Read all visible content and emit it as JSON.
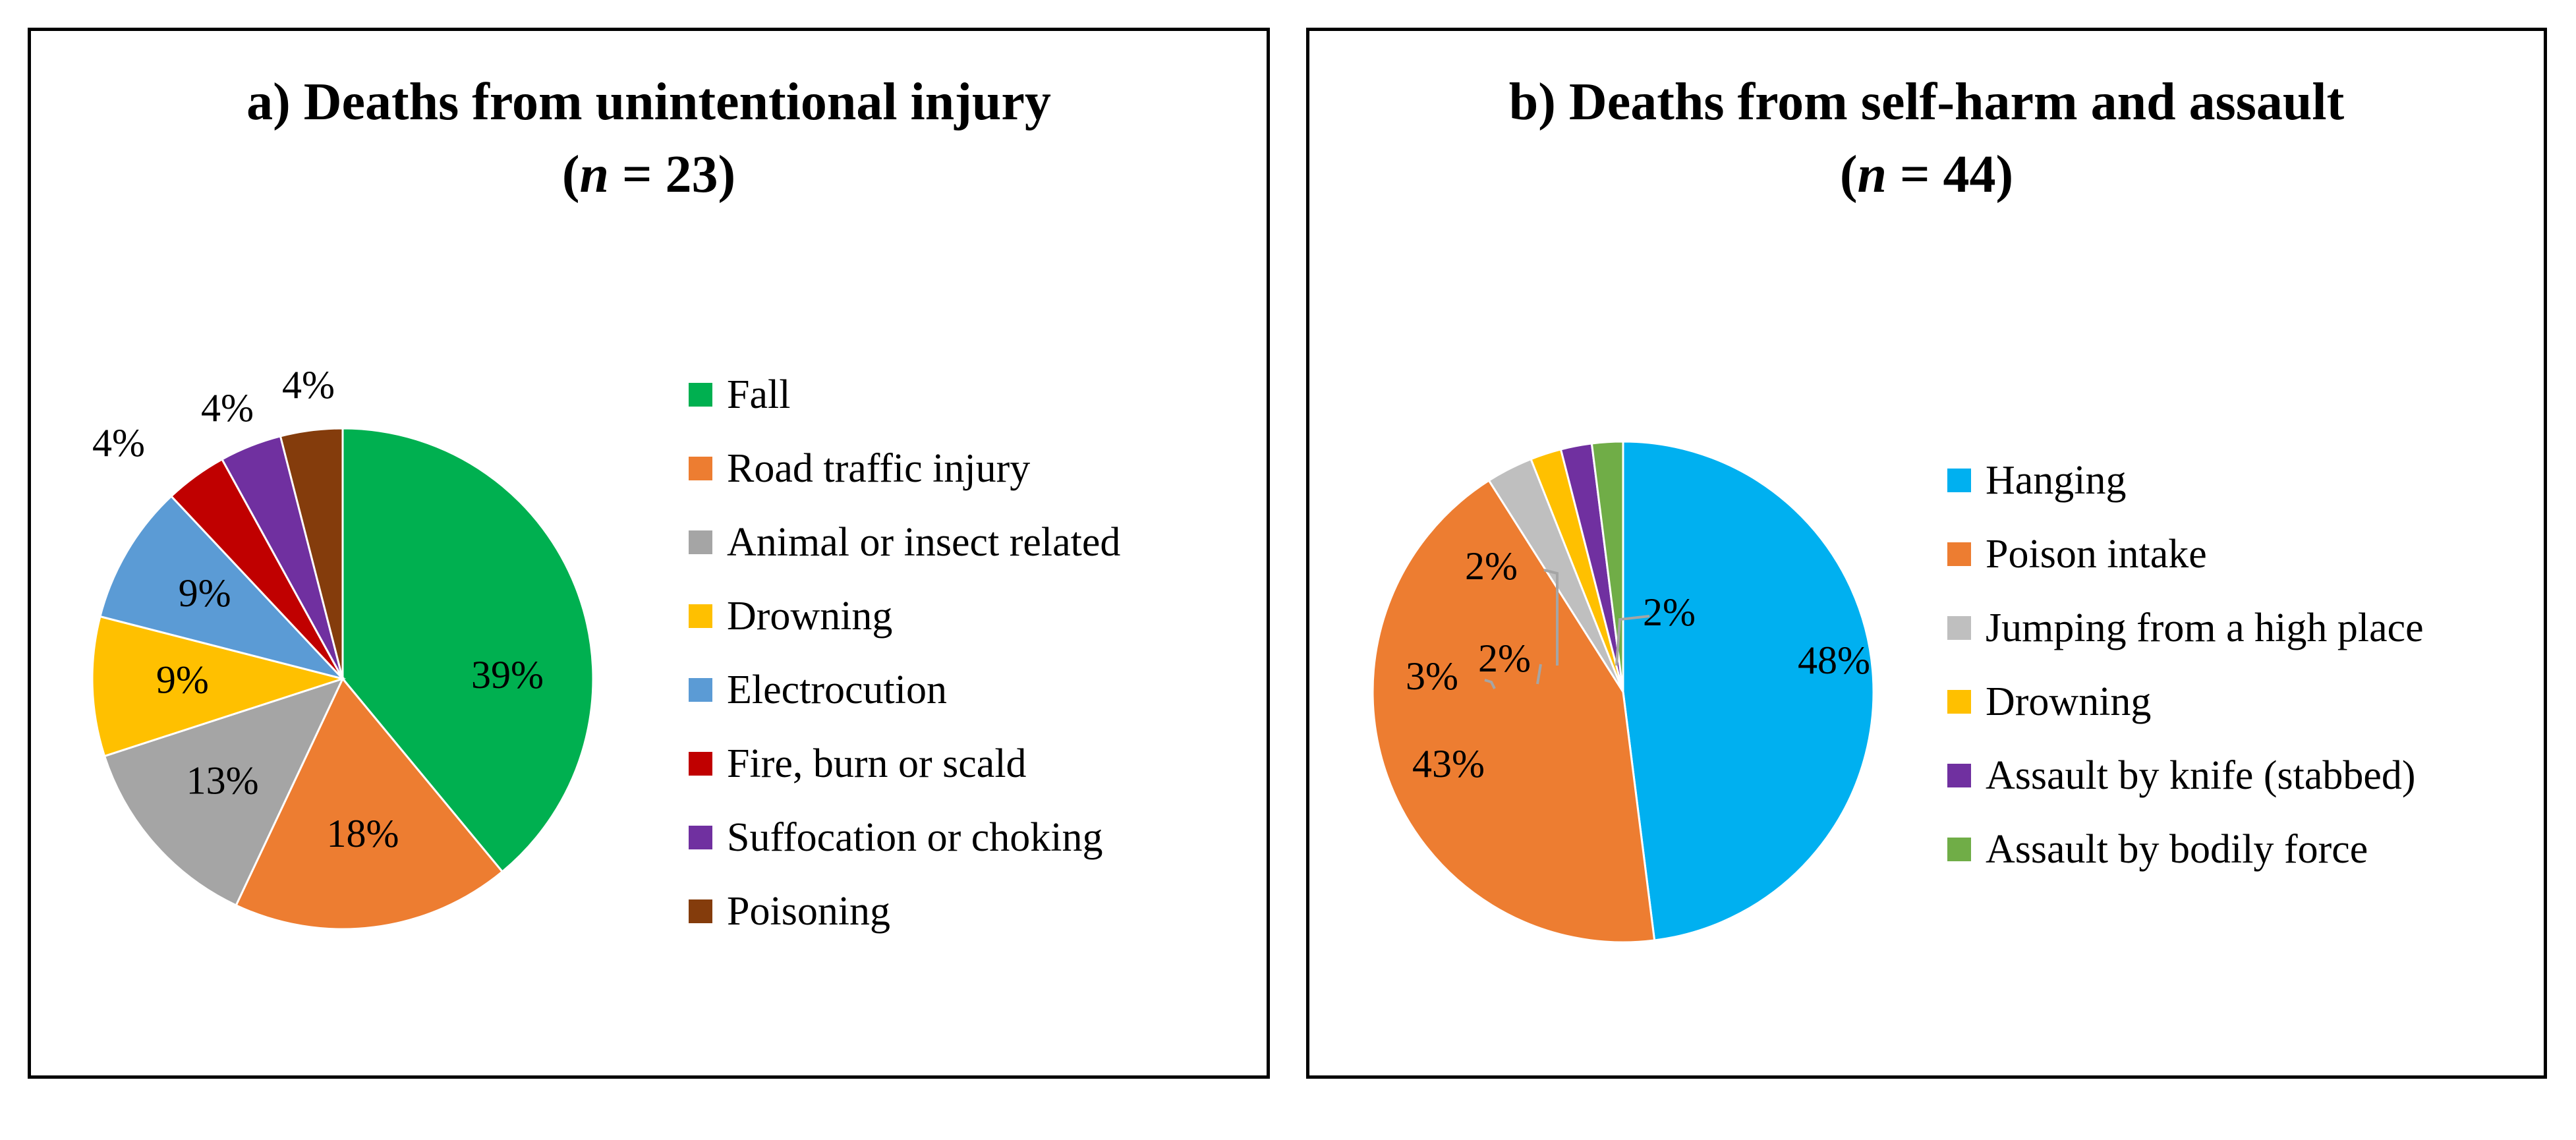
{
  "chart_data": [
    {
      "type": "pie",
      "title": "a) Deaths from unintentional injury",
      "subtitle": {
        "prefix": "(",
        "variable": "n",
        "rest": " = 23)"
      },
      "slices": [
        {
          "name": "Fall",
          "value": 39,
          "label": "39%",
          "color": "#00B050"
        },
        {
          "name": "Road traffic injury",
          "value": 18,
          "label": "18%",
          "color": "#ED7D31"
        },
        {
          "name": "Animal or insect related",
          "value": 13,
          "label": "13%",
          "color": "#A5A5A5"
        },
        {
          "name": "Drowning",
          "value": 9,
          "label": "9%",
          "color": "#FFC000"
        },
        {
          "name": "Electrocution",
          "value": 9,
          "label": "9%",
          "color": "#5B9BD5"
        },
        {
          "name": "Fire, burn or scald",
          "value": 4,
          "label": "4%",
          "color": "#C00000"
        },
        {
          "name": "Suffocation or choking",
          "value": 4,
          "label": "4%",
          "color": "#7030A0"
        },
        {
          "name": "Poisoning",
          "value": 4,
          "label": "4%",
          "color": "#843C0C"
        }
      ],
      "legend_position": "right"
    },
    {
      "type": "pie",
      "title": "b) Deaths from self-harm and assault",
      "subtitle": {
        "prefix": "(",
        "variable": "n",
        "rest": " = 44)"
      },
      "slices": [
        {
          "name": "Hanging",
          "value": 48,
          "label": "48%",
          "color": "#00B0F0"
        },
        {
          "name": "Poison intake",
          "value": 43,
          "label": "43%",
          "color": "#ED7D31"
        },
        {
          "name": "Jumping from a high place",
          "value": 3,
          "label": "3%",
          "color": "#BFBFBF"
        },
        {
          "name": "Drowning",
          "value": 2,
          "label": "2%",
          "color": "#FFC000"
        },
        {
          "name": "Assault by knife (stabbed)",
          "value": 2,
          "label": "2%",
          "color": "#7030A0"
        },
        {
          "name": "Assault by bodily force",
          "value": 2,
          "label": "2%",
          "color": "#70AD47"
        }
      ],
      "legend_position": "right"
    }
  ]
}
